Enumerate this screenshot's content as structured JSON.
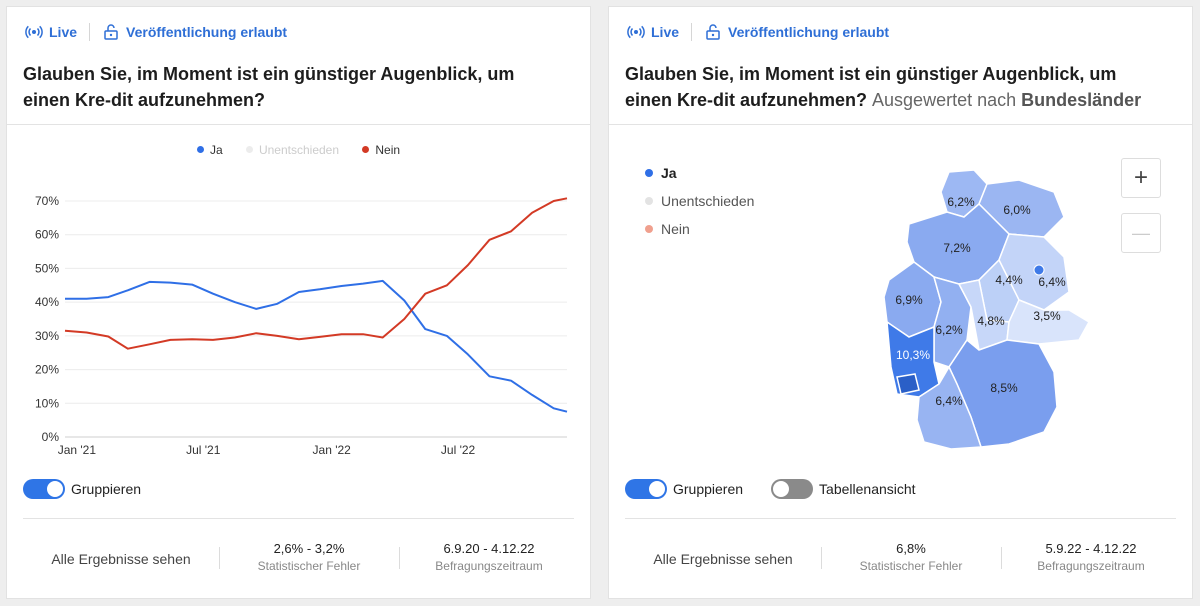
{
  "left": {
    "live_label": "Live",
    "publish_label": "Veröffentlichung erlaubt",
    "question": "Glauben Sie, im Moment ist ein günstiger Augenblick, um einen Kre-dit aufzunehmen?",
    "legend": [
      {
        "name": "Ja",
        "color": "#2f6fe6"
      },
      {
        "name": "Unentschieden",
        "color": "#e6e6e6"
      },
      {
        "name": "Nein",
        "color": "#d33a25"
      }
    ],
    "toggle_label": "Gruppieren",
    "footer": {
      "link": "Alle Ergebnisse sehen",
      "error_value": "2,6% - 3,2%",
      "error_label": "Statistischer Fehler",
      "period_value": "6.9.20 - 4.12.22",
      "period_label": "Befragungszeitraum"
    }
  },
  "right": {
    "live_label": "Live",
    "publish_label": "Veröffentlichung erlaubt",
    "question": "Glauben Sie, im Moment ist ein günstiger Augenblick, um einen Kre-dit aufzunehmen?",
    "question_sub_prefix": "Ausgewertet nach",
    "question_sub_bold": "Bundesländer",
    "legend": [
      {
        "name": "Ja",
        "color": "#2f6fe6"
      },
      {
        "name": "Unentschieden",
        "color": "#e3e3e3"
      },
      {
        "name": "Nein",
        "color": "#f0a08e"
      }
    ],
    "zoom_in": "+",
    "zoom_out": "—",
    "toggle_label": "Gruppieren",
    "toggle2_label": "Tabellenansicht",
    "footer": {
      "link": "Alle Ergebnisse sehen",
      "error_value": "6,8%",
      "error_label": "Statistischer Fehler",
      "period_value": "5.9.22 - 4.12.22",
      "period_label": "Befragungszeitraum"
    },
    "region_labels": [
      "6,2%",
      "6,0%",
      "7,2%",
      "4,4%",
      "6,4%",
      "6,9%",
      "6,2%",
      "4,8%",
      "3,5%",
      "10,3%",
      "8,5%",
      "6,4%"
    ]
  },
  "chart_data": [
    {
      "type": "line",
      "title": "Glauben Sie, im Moment ist ein günstiger Augenblick, um einen Kredit aufzunehmen?",
      "x_tick_labels": [
        "Jan '21",
        "Jul '21",
        "Jan '22",
        "Jul '22"
      ],
      "y_tick_labels": [
        "0%",
        "10%",
        "20%",
        "30%",
        "40%",
        "50%",
        "60%",
        "70%"
      ],
      "ylim": [
        0,
        70
      ],
      "xlim": [
        "2020-12-15",
        "2022-12-04"
      ],
      "grid": true,
      "legend_position": "top",
      "x": [
        "2020-12-15",
        "2021-01-15",
        "2021-02-15",
        "2021-03-15",
        "2021-04-15",
        "2021-05-15",
        "2021-06-15",
        "2021-07-15",
        "2021-08-15",
        "2021-09-15",
        "2021-10-15",
        "2021-11-15",
        "2021-12-15",
        "2022-01-15",
        "2022-02-15",
        "2022-03-15",
        "2022-04-15",
        "2022-05-15",
        "2022-06-15",
        "2022-07-15",
        "2022-08-15",
        "2022-09-15",
        "2022-10-15",
        "2022-11-15",
        "2022-12-04"
      ],
      "series": [
        {
          "name": "Ja",
          "color": "#2f6fe6",
          "values": [
            41,
            41,
            41.5,
            43.5,
            46,
            45.8,
            45.2,
            42.5,
            40,
            38,
            39.5,
            43,
            43.8,
            44.8,
            45.5,
            46.3,
            40.5,
            32,
            30,
            24.5,
            18,
            16.7,
            12.5,
            8.5,
            7.5
          ]
        },
        {
          "name": "Nein",
          "color": "#d33a25",
          "values": [
            31.5,
            31,
            29.8,
            26.2,
            27.5,
            28.8,
            29,
            28.8,
            29.5,
            30.8,
            30,
            29,
            29.7,
            30.5,
            30.5,
            29.5,
            35,
            42.5,
            45,
            51,
            58.5,
            61,
            66.5,
            70,
            70.8
          ]
        }
      ]
    },
    {
      "type": "map",
      "title": "Glauben Sie, im Moment ist ein günstiger Augenblick, um einen Kredit aufzunehmen? Ausgewertet nach Bundesländer",
      "series_name": "Ja",
      "values_percent": [
        6.2,
        6.0,
        7.2,
        4.4,
        6.4,
        6.9,
        6.2,
        4.8,
        3.5,
        10.3,
        8.5,
        6.4
      ]
    }
  ]
}
